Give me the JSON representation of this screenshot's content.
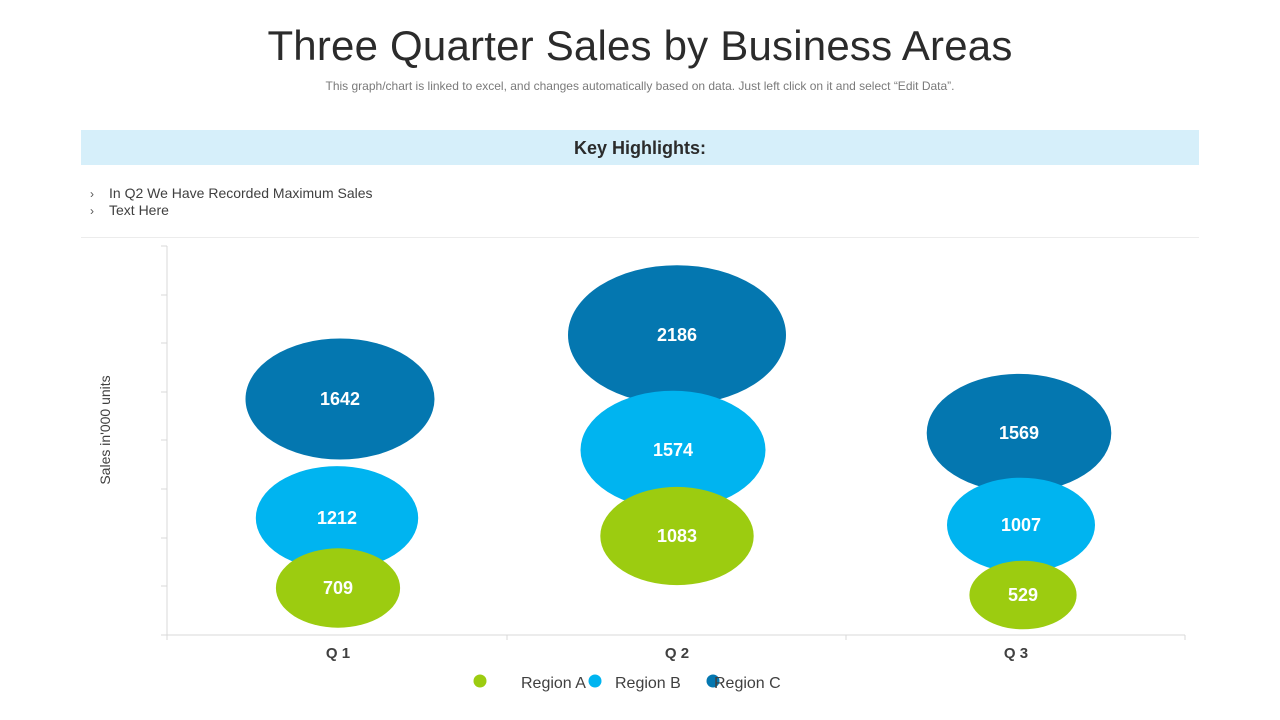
{
  "header": {
    "title": "Three Quarter Sales by Business Areas",
    "subtitle": "This graph/chart is linked to excel, and changes automatically based on data. Just left click on it and select “Edit Data”."
  },
  "highlights": {
    "title": "Key Highlights:",
    "items": [
      "In Q2 We Have Recorded Maximum  Sales",
      "Text Here"
    ]
  },
  "colors": {
    "region_a": "#9ccc10",
    "region_b": "#00b4f0",
    "region_c": "#0477b0"
  },
  "chart_data": {
    "type": "bubble",
    "title": "",
    "xlabel": "",
    "ylabel": "Sales in'000 units",
    "categories": [
      "Q 1",
      "Q 2",
      "Q 3"
    ],
    "series": [
      {
        "name": "Region A",
        "values": [
          709,
          1083,
          529
        ]
      },
      {
        "name": "Region B",
        "values": [
          1212,
          1574,
          1007
        ]
      },
      {
        "name": "Region C",
        "values": [
          1642,
          2186,
          1569
        ]
      }
    ],
    "legend_position": "bottom"
  }
}
